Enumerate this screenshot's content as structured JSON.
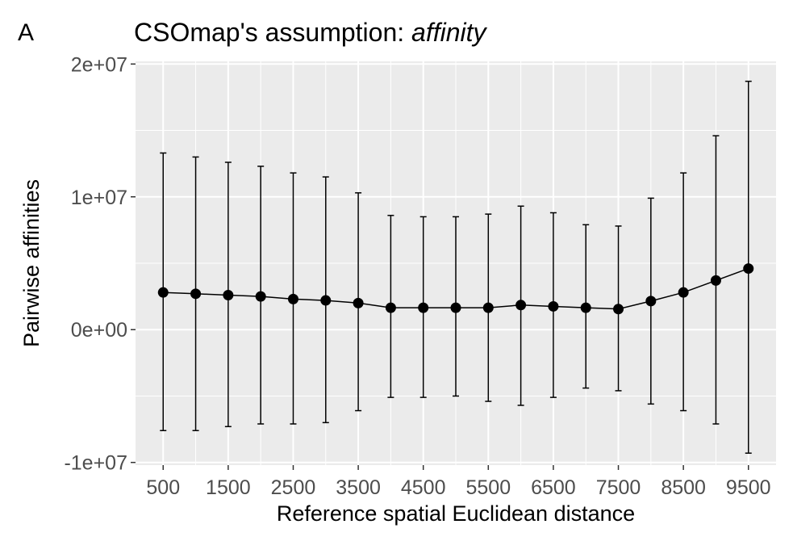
{
  "panel_label": "A",
  "chart_data": {
    "type": "line",
    "title": "CSOmap's assumption: ",
    "title_emphasis": "affinity",
    "xlabel": "Reference spatial Euclidean distance",
    "ylabel": "Pairwise affinities",
    "x": [
      500,
      1000,
      1500,
      2000,
      2500,
      3000,
      3500,
      4000,
      4500,
      5000,
      5500,
      6000,
      6500,
      7000,
      7500,
      8000,
      8500,
      9000,
      9500
    ],
    "series": [
      {
        "values": [
          2800000,
          2700000,
          2600000,
          2500000,
          2300000,
          2200000,
          2000000,
          1650000,
          1650000,
          1650000,
          1650000,
          1850000,
          1750000,
          1650000,
          1550000,
          2150000,
          2800000,
          3700000,
          4600000
        ],
        "error_upper": [
          13300000,
          13000000,
          12600000,
          12300000,
          11800000,
          11500000,
          10300000,
          8600000,
          8500000,
          8500000,
          8700000,
          9300000,
          8800000,
          7900000,
          7800000,
          9900000,
          11800000,
          14600000,
          18700000
        ],
        "error_lower": [
          -7600000,
          -7600000,
          -7300000,
          -7100000,
          -7100000,
          -7000000,
          -6100000,
          -5100000,
          -5100000,
          -5000000,
          -5400000,
          -5700000,
          -5100000,
          -4400000,
          -4600000,
          -5600000,
          -6100000,
          -7100000,
          -9300000
        ]
      }
    ],
    "x_ticks": [
      500,
      1500,
      2500,
      3500,
      4500,
      5500,
      6500,
      7500,
      8500,
      9500
    ],
    "x_tick_labels": [
      "500",
      "1500",
      "2500",
      "3500",
      "4500",
      "5500",
      "6500",
      "7500",
      "8500",
      "9500"
    ],
    "y_ticks": [
      -10000000,
      0,
      10000000,
      20000000
    ],
    "y_tick_labels": [
      "-1e+07",
      "0e+00",
      "1e+07",
      "2e+07"
    ],
    "xlim": [
      75,
      9925
    ],
    "ylim": [
      -10200000,
      20200000
    ],
    "grid": true,
    "colors": {
      "panel_bg": "#ebebeb",
      "grid": "#ffffff",
      "series": "#000000",
      "tick_text": "#4d4d4d"
    }
  }
}
